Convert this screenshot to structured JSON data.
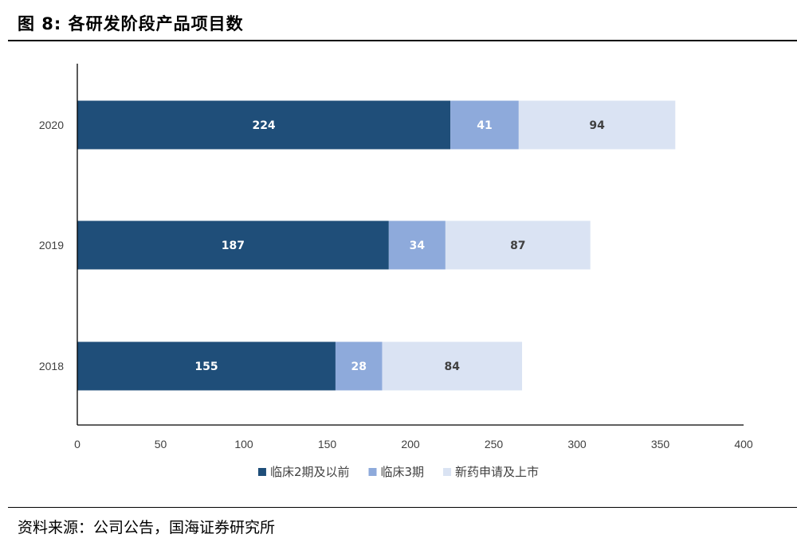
{
  "figure": {
    "title": "图 8:  各研发阶段产品项目数",
    "source": "资料来源：公司公告，国海证券研究所"
  },
  "chart_data": {
    "type": "bar",
    "orientation": "horizontal",
    "stacked": true,
    "categories": [
      "2020",
      "2019",
      "2018"
    ],
    "series": [
      {
        "name": "临床2期及以前",
        "values": [
          224,
          187,
          155
        ],
        "color": "#1f4e79",
        "label_color": "#ffffff"
      },
      {
        "name": "临床3期",
        "values": [
          41,
          34,
          28
        ],
        "color": "#8eaadb",
        "label_color": "#ffffff"
      },
      {
        "name": "新药申请及上市",
        "values": [
          94,
          87,
          84
        ],
        "color": "#dae3f3",
        "label_color": "#404040"
      }
    ],
    "xlim": [
      0,
      400
    ],
    "xticks": [
      "0",
      "50",
      "100",
      "150",
      "200",
      "250",
      "300",
      "350",
      "400"
    ],
    "grid": false,
    "legend_position": "bottom"
  }
}
